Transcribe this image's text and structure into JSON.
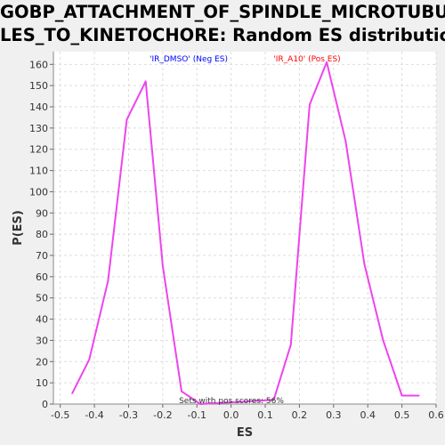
{
  "title_line1": "GOBP_ATTACHMENT_OF_SPINDLE_MICROTUBU",
  "title_line2": "LES_TO_KINETOCHORE: Random ES distribution",
  "chart_data": {
    "type": "line",
    "xlabel": "ES",
    "ylabel": "P(ES)",
    "xlim": [
      -0.52,
      0.6
    ],
    "ylim": [
      0,
      166
    ],
    "x_ticks": [
      "-0.5",
      "-0.4",
      "-0.3",
      "-0.2",
      "-0.1",
      "0.0",
      "0.1",
      "0.2",
      "0.3",
      "0.4",
      "0.5",
      "0.6"
    ],
    "y_ticks": [
      "0",
      "10",
      "20",
      "30",
      "40",
      "50",
      "60",
      "70",
      "80",
      "90",
      "100",
      "110",
      "120",
      "130",
      "140",
      "150",
      "160"
    ],
    "grid": true,
    "legend": [
      {
        "label": "'IR_DMSO' (Neg ES)",
        "color": "#0000ff"
      },
      {
        "label": "'IR_A10' (Pos ES)",
        "color": "#ff0000"
      }
    ],
    "annotation": "Sets with pos scores: 56%",
    "series": [
      {
        "color": "#ee44ee",
        "points": [
          [
            -0.465,
            5
          ],
          [
            -0.415,
            21
          ],
          [
            -0.36,
            58
          ],
          [
            -0.305,
            134
          ],
          [
            -0.25,
            152
          ],
          [
            -0.2,
            65
          ],
          [
            -0.145,
            6
          ],
          [
            -0.09,
            0
          ],
          [
            0.125,
            2
          ],
          [
            0.175,
            28
          ],
          [
            0.23,
            141
          ],
          [
            0.28,
            161
          ],
          [
            0.335,
            124
          ],
          [
            0.39,
            66
          ],
          [
            0.445,
            30
          ],
          [
            0.5,
            4
          ],
          [
            0.55,
            4
          ]
        ]
      }
    ]
  }
}
